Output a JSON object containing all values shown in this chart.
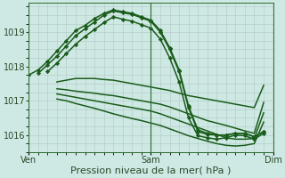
{
  "bg_color": "#cee8e4",
  "grid_color": "#b0c8c4",
  "line_color": "#1a5c1a",
  "marker_color": "#1a5c1a",
  "xlabel": "Pression niveau de la mer( hPa )",
  "xlabel_fontsize": 8,
  "tick_fontsize": 7,
  "ylim": [
    1015.5,
    1019.85
  ],
  "yticks": [
    1016,
    1017,
    1018,
    1019
  ],
  "day_labels": [
    "Ven",
    "Sam",
    "Dim"
  ],
  "day_positions": [
    0,
    13,
    26
  ],
  "xlim": [
    0,
    26
  ],
  "lines": [
    {
      "x": [
        0,
        1,
        2,
        3,
        4,
        5,
        6,
        7,
        8,
        9,
        10,
        11,
        12,
        13,
        14,
        15,
        16,
        17,
        18,
        19,
        20,
        21,
        22,
        23,
        24,
        25
      ],
      "y": [
        1017.75,
        1017.9,
        1018.15,
        1018.45,
        1018.75,
        1019.05,
        1019.2,
        1019.4,
        1019.55,
        1019.65,
        1019.6,
        1019.55,
        1019.45,
        1019.35,
        1019.05,
        1018.55,
        1017.9,
        1016.85,
        1016.15,
        1016.05,
        1016.0,
        1016.0,
        1016.05,
        1016.05,
        1015.95,
        1016.1
      ],
      "marker": "D",
      "ms": 2.2,
      "lw": 1.1
    },
    {
      "x": [
        1,
        2,
        3,
        4,
        5,
        6,
        7,
        8,
        9,
        10,
        11,
        12,
        13,
        14,
        15,
        16,
        17,
        18,
        19,
        20,
        21,
        22,
        23,
        24,
        25
      ],
      "y": [
        1017.8,
        1018.05,
        1018.3,
        1018.6,
        1018.9,
        1019.1,
        1019.3,
        1019.5,
        1019.62,
        1019.57,
        1019.52,
        1019.42,
        1019.32,
        1019.0,
        1018.5,
        1017.85,
        1016.8,
        1016.1,
        1016.02,
        1016.0,
        1016.0,
        1016.05,
        1016.05,
        1015.95,
        1016.1
      ],
      "marker": "D",
      "ms": 2.2,
      "lw": 1.1
    },
    {
      "x": [
        2,
        3,
        4,
        5,
        6,
        7,
        8,
        9,
        10,
        11,
        12,
        13,
        14,
        15,
        16,
        17,
        18,
        19,
        20,
        21,
        22,
        23,
        24,
        25
      ],
      "y": [
        1017.85,
        1018.1,
        1018.38,
        1018.65,
        1018.88,
        1019.08,
        1019.28,
        1019.45,
        1019.38,
        1019.32,
        1019.22,
        1019.12,
        1018.8,
        1018.25,
        1017.55,
        1016.5,
        1015.98,
        1015.92,
        1015.88,
        1015.92,
        1016.0,
        1015.98,
        1015.88,
        1016.05
      ],
      "marker": "D",
      "ms": 2.2,
      "lw": 1.1
    },
    {
      "x": [
        3,
        4,
        5,
        6,
        7,
        8,
        9,
        10,
        11,
        12,
        13,
        14,
        15,
        16,
        17,
        18,
        19,
        20,
        21,
        22,
        23,
        24,
        25
      ],
      "y": [
        1017.55,
        1017.6,
        1017.65,
        1017.65,
        1017.65,
        1017.62,
        1017.6,
        1017.55,
        1017.5,
        1017.45,
        1017.4,
        1017.35,
        1017.3,
        1017.22,
        1017.15,
        1017.1,
        1017.05,
        1017.0,
        1016.95,
        1016.9,
        1016.85,
        1016.8,
        1017.45
      ],
      "marker": null,
      "ms": 0,
      "lw": 1.1
    },
    {
      "x": [
        3,
        4,
        5,
        6,
        7,
        8,
        9,
        10,
        11,
        12,
        13,
        14,
        15,
        16,
        17,
        18,
        19,
        20,
        21,
        22,
        23,
        24,
        25
      ],
      "y": [
        1017.35,
        1017.32,
        1017.28,
        1017.25,
        1017.22,
        1017.18,
        1017.15,
        1017.1,
        1017.05,
        1017.0,
        1016.95,
        1016.9,
        1016.82,
        1016.72,
        1016.62,
        1016.52,
        1016.42,
        1016.35,
        1016.28,
        1016.2,
        1016.12,
        1016.05,
        1016.95
      ],
      "marker": null,
      "ms": 0,
      "lw": 1.1
    },
    {
      "x": [
        3,
        4,
        5,
        6,
        7,
        8,
        9,
        10,
        11,
        12,
        13,
        14,
        15,
        16,
        17,
        18,
        19,
        20,
        21,
        22,
        23,
        24,
        25
      ],
      "y": [
        1017.2,
        1017.15,
        1017.1,
        1017.05,
        1017.0,
        1016.95,
        1016.9,
        1016.85,
        1016.8,
        1016.75,
        1016.7,
        1016.62,
        1016.52,
        1016.42,
        1016.32,
        1016.22,
        1016.12,
        1016.02,
        1015.92,
        1015.88,
        1015.88,
        1015.9,
        1016.65
      ],
      "marker": null,
      "ms": 0,
      "lw": 1.1
    },
    {
      "x": [
        3,
        4,
        5,
        6,
        7,
        8,
        9,
        10,
        11,
        12,
        13,
        14,
        15,
        16,
        17,
        18,
        19,
        20,
        21,
        22,
        23,
        24,
        25
      ],
      "y": [
        1017.05,
        1017.0,
        1016.92,
        1016.85,
        1016.78,
        1016.7,
        1016.62,
        1016.55,
        1016.48,
        1016.42,
        1016.35,
        1016.28,
        1016.18,
        1016.08,
        1015.98,
        1015.9,
        1015.82,
        1015.75,
        1015.7,
        1015.68,
        1015.7,
        1015.75,
        1016.38
      ],
      "marker": null,
      "ms": 0,
      "lw": 1.1
    }
  ]
}
